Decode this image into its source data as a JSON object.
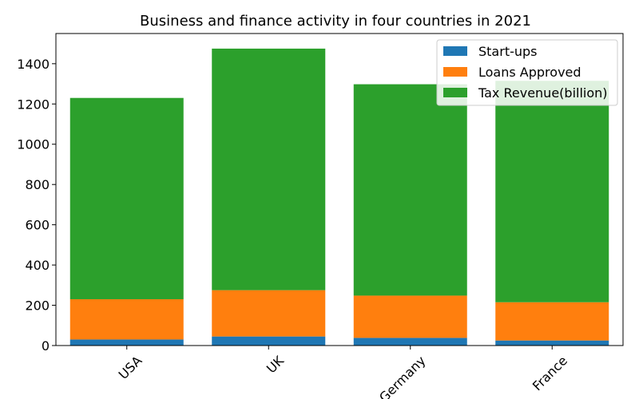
{
  "chart_data": {
    "type": "bar",
    "stacked": true,
    "title": "Business and finance activity in four countries in 2021",
    "xlabel": "",
    "ylabel": "",
    "categories": [
      "USA",
      "UK",
      "Germany",
      "France"
    ],
    "series": [
      {
        "name": "Start-ups",
        "color": "#1f77b4",
        "values": [
          30,
          45,
          38,
          25
        ]
      },
      {
        "name": "Loans Approved",
        "color": "#ff7f0e",
        "values": [
          200,
          230,
          210,
          190
        ]
      },
      {
        "name": "Tax Revenue(billion)",
        "color": "#2ca02c",
        "values": [
          1000,
          1200,
          1050,
          1100
        ]
      }
    ],
    "ylim": [
      0,
      1550
    ],
    "yticks": [
      0,
      200,
      400,
      600,
      800,
      1000,
      1200,
      1400
    ],
    "xtick_rotation": 45,
    "grid": false,
    "legend_position": "top-right"
  }
}
